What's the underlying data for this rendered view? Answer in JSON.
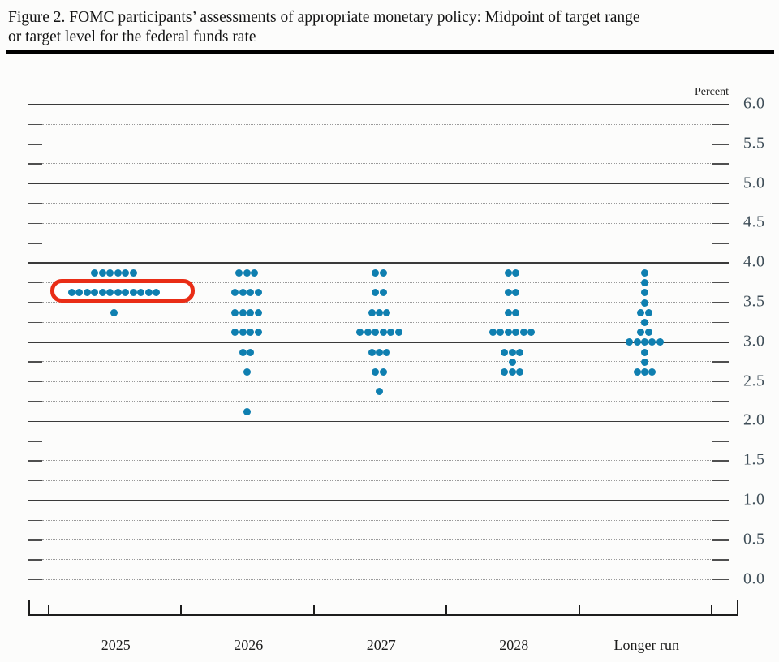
{
  "figure": {
    "title_line1": "Figure 2. FOMC participants’ assessments of appropriate monetary policy: Midpoint of target range",
    "title_line2": "or target level for the federal funds rate"
  },
  "chart_data": {
    "type": "scatter",
    "subtype": "fomc-dot-plot",
    "title": "FOMC participants’ assessments of appropriate monetary policy: Midpoint of target range or target level for the federal funds rate",
    "unit_label": "Percent",
    "xlabel": "",
    "ylabel": "Percent",
    "ylim": [
      0.0,
      6.0
    ],
    "gridline_step": 0.25,
    "label_step": 0.5,
    "grid": "dotted quarter-point lines; solid lines at whole percents 1.0-6.0",
    "solid_gridlines": [
      6.0,
      5.0,
      4.0,
      3.0,
      2.0,
      1.0
    ],
    "y_axis_labels": [
      "6.0",
      "5.5",
      "5.0",
      "4.5",
      "4.0",
      "3.5",
      "3.0",
      "2.5",
      "2.0",
      "1.5",
      "1.0",
      "0.5",
      "0.0"
    ],
    "legend_position": "none",
    "categories": [
      "2025",
      "2026",
      "2027",
      "2028",
      "Longer run"
    ],
    "participants_per_column": 19,
    "series": [
      {
        "name": "2025",
        "dots": [
          [
            3.875,
            6
          ],
          [
            3.625,
            12
          ],
          [
            3.375,
            1
          ]
        ]
      },
      {
        "name": "2026",
        "dots": [
          [
            3.875,
            3
          ],
          [
            3.625,
            4
          ],
          [
            3.375,
            4
          ],
          [
            3.125,
            4
          ],
          [
            2.875,
            2
          ],
          [
            2.625,
            1
          ],
          [
            2.125,
            1
          ]
        ]
      },
      {
        "name": "2027",
        "dots": [
          [
            3.875,
            2
          ],
          [
            3.625,
            2
          ],
          [
            3.375,
            3
          ],
          [
            3.125,
            6
          ],
          [
            2.875,
            3
          ],
          [
            2.625,
            2
          ],
          [
            2.375,
            1
          ]
        ]
      },
      {
        "name": "2028",
        "dots": [
          [
            3.875,
            2
          ],
          [
            3.625,
            2
          ],
          [
            3.375,
            2
          ],
          [
            3.125,
            6
          ],
          [
            2.875,
            3
          ],
          [
            2.75,
            1
          ],
          [
            2.625,
            3
          ]
        ]
      },
      {
        "name": "Longer run",
        "dots": [
          [
            3.875,
            1
          ],
          [
            3.75,
            1
          ],
          [
            3.625,
            1
          ],
          [
            3.5,
            1
          ],
          [
            3.375,
            2
          ],
          [
            3.25,
            1
          ],
          [
            3.125,
            2
          ],
          [
            3.0,
            5
          ],
          [
            2.875,
            1
          ],
          [
            2.75,
            1
          ],
          [
            2.625,
            3
          ]
        ]
      }
    ],
    "highlight": {
      "category": "2025",
      "value": 3.625,
      "shape": "red rounded rectangle around median row"
    },
    "separator": {
      "type": "dashed vertical line",
      "between": [
        "2028",
        "Longer run"
      ]
    }
  },
  "colors": {
    "dot": "#0f7fb0",
    "highlight_box": "#e92d16",
    "grid_dotted": "#9a9a9a",
    "grid_solid": "#3a3a3a",
    "axis": "#1d1d1d",
    "tick_label": "#3f4e58",
    "background": "#fcfcfb"
  }
}
